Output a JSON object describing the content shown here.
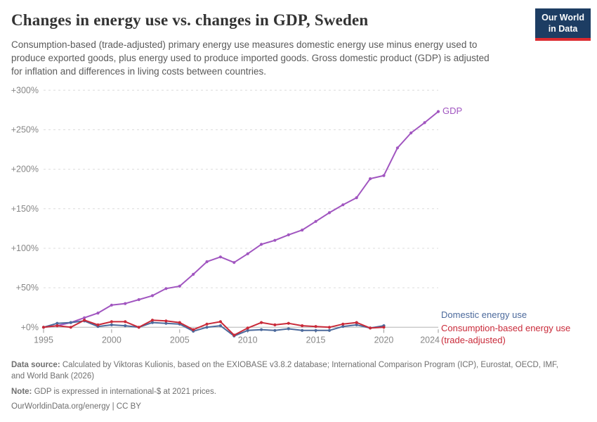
{
  "header": {
    "title": "Changes in energy use vs. changes in GDP, Sweden",
    "logo": {
      "line1": "Our World",
      "line2": "in Data",
      "bg_color": "#1d3d63",
      "accent_color": "#dc2a2f"
    }
  },
  "subtitle": "Consumption-based (trade-adjusted) primary energy use measures domestic energy use minus energy used to produce exported goods, plus energy used to produce imported goods. Gross domestic product (GDP) is adjusted for inflation and differences in living costs between countries.",
  "chart_data": {
    "type": "line",
    "title": "Changes in energy use vs. changes in GDP, Sweden",
    "xlabel": "",
    "ylabel": "",
    "xlim": [
      1995,
      2024
    ],
    "ylim": [
      0,
      300
    ],
    "grid": "horizontal-dashed",
    "legend_position": "end-of-line-labels",
    "yticks": {
      "values": [
        0,
        50,
        100,
        150,
        200,
        250,
        300
      ],
      "labels": [
        "+0%",
        "+50%",
        "+100%",
        "+150%",
        "+200%",
        "+250%",
        "+300%"
      ]
    },
    "xticks": {
      "values": [
        1995,
        2000,
        2005,
        2010,
        2015,
        2020,
        2024
      ],
      "labels": [
        "1995",
        "2000",
        "2005",
        "2010",
        "2015",
        "2020",
        "2024"
      ]
    },
    "series": [
      {
        "name": "GDP",
        "color": "#a156c0",
        "start_year": 1995,
        "end_year": 2024,
        "values": [
          0,
          2,
          6,
          12,
          18,
          28,
          30,
          35,
          40,
          49,
          52,
          67,
          83,
          89,
          82,
          93,
          105,
          110,
          117,
          123,
          134,
          145,
          155,
          164,
          188,
          192,
          227,
          246,
          259,
          273
        ]
      },
      {
        "name": "Domestic energy use",
        "color": "#4c6a9c",
        "start_year": 1995,
        "end_year": 2020,
        "values": [
          0,
          5,
          6,
          8,
          1,
          3,
          2,
          0,
          6,
          5,
          4,
          -5,
          0,
          2,
          -11,
          -4,
          -3,
          -4,
          -2,
          -4,
          -4,
          -4,
          1,
          3,
          -1,
          2
        ]
      },
      {
        "name": "Consumption-based energy use (trade-adjusted)",
        "color": "#c92a39",
        "start_year": 1995,
        "end_year": 2020,
        "values": [
          0,
          2,
          0,
          9,
          3,
          7,
          7,
          0,
          9,
          8,
          6,
          -3,
          4,
          7,
          -10,
          -1,
          6,
          3,
          5,
          2,
          1,
          0,
          4,
          6,
          -1,
          0
        ]
      }
    ]
  },
  "legend": {
    "gdp": "GDP",
    "domestic": "Domestic energy use",
    "consumption_line1": "Consumption-based energy use",
    "consumption_line2": "(trade-adjusted)"
  },
  "footer": {
    "source_label": "Data source:",
    "source_text": " Calculated by Viktoras Kulionis, based on the EXIOBASE v3.8.2 database; International Comparison Program (ICP), Eurostat, OECD, IMF, and World Bank (2026)",
    "note_label": "Note:",
    "note_text": " GDP is expressed in international-$ at 2021 prices.",
    "link_text": "OurWorldinData.org/energy",
    "license_text": " | CC BY"
  }
}
